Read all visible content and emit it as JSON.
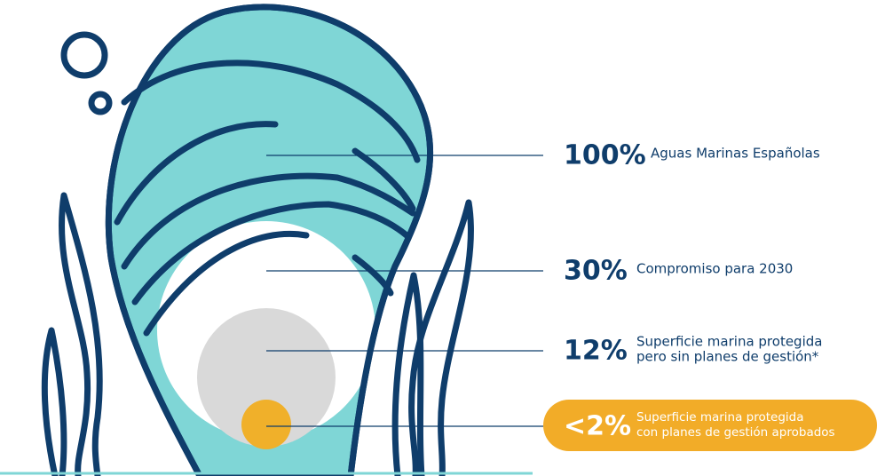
{
  "items": [
    {
      "value": "100%",
      "label": [
        "Aguas Marinas Españolas"
      ]
    },
    {
      "value": "30%",
      "label": [
        "Compromiso para 2030"
      ]
    },
    {
      "value": "12%",
      "label": [
        "Superficie marina protegida",
        "pero sin planes de gestión*"
      ]
    },
    {
      "value": "<2%",
      "label": [
        "Superficie marina protegida",
        "con planes de gestión aprobados"
      ]
    }
  ]
}
